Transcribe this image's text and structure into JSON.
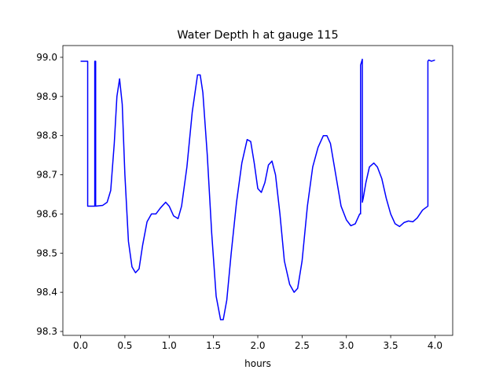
{
  "chart_data": {
    "type": "line",
    "title": "Water Depth h at gauge 115",
    "xlabel": "hours",
    "ylabel": "",
    "xlim": [
      -0.2,
      4.2
    ],
    "ylim": [
      98.29,
      99.03
    ],
    "grid": false,
    "legend": "none",
    "xticks": [
      0.0,
      0.5,
      1.0,
      1.5,
      2.0,
      2.5,
      3.0,
      3.5,
      4.0
    ],
    "xtick_labels": [
      "0.0",
      "0.5",
      "1.0",
      "1.5",
      "2.0",
      "2.5",
      "3.0",
      "3.5",
      "4.0"
    ],
    "yticks": [
      98.3,
      98.4,
      98.5,
      98.6,
      98.7,
      98.8,
      98.9,
      99.0
    ],
    "ytick_labels": [
      "98.3",
      "98.4",
      "98.5",
      "98.6",
      "98.7",
      "98.8",
      "98.9",
      "99.0"
    ],
    "series": [
      {
        "color": "#0000ff",
        "x": [
          0.0,
          0.08,
          0.08,
          0.16,
          0.16,
          0.17,
          0.17,
          0.25,
          0.3,
          0.34,
          0.38,
          0.41,
          0.44,
          0.47,
          0.5,
          0.54,
          0.58,
          0.62,
          0.66,
          0.7,
          0.75,
          0.8,
          0.85,
          0.9,
          0.96,
          1.0,
          1.05,
          1.1,
          1.14,
          1.2,
          1.26,
          1.32,
          1.35,
          1.38,
          1.43,
          1.48,
          1.53,
          1.58,
          1.61,
          1.65,
          1.7,
          1.76,
          1.82,
          1.88,
          1.92,
          1.96,
          2.0,
          2.04,
          2.08,
          2.12,
          2.16,
          2.2,
          2.25,
          2.3,
          2.36,
          2.41,
          2.45,
          2.5,
          2.56,
          2.62,
          2.68,
          2.74,
          2.78,
          2.82,
          2.88,
          2.94,
          3.0,
          3.05,
          3.1,
          3.15,
          3.16,
          3.16,
          3.18,
          3.18,
          3.19,
          3.22,
          3.26,
          3.31,
          3.35,
          3.4,
          3.45,
          3.5,
          3.55,
          3.6,
          3.65,
          3.7,
          3.75,
          3.8,
          3.86,
          3.92,
          3.92,
          3.93,
          3.96,
          4.0
        ],
        "y": [
          98.99,
          98.99,
          98.62,
          98.62,
          98.99,
          98.99,
          98.62,
          98.622,
          98.63,
          98.66,
          98.78,
          98.9,
          98.945,
          98.88,
          98.7,
          98.53,
          98.465,
          98.45,
          98.46,
          98.52,
          98.58,
          98.6,
          98.6,
          98.615,
          98.63,
          98.62,
          98.595,
          98.588,
          98.62,
          98.72,
          98.86,
          98.955,
          98.955,
          98.91,
          98.75,
          98.55,
          98.39,
          98.33,
          98.33,
          98.38,
          98.5,
          98.63,
          98.73,
          98.79,
          98.785,
          98.73,
          98.665,
          98.655,
          98.68,
          98.725,
          98.735,
          98.7,
          98.6,
          98.48,
          98.42,
          98.4,
          98.41,
          98.48,
          98.62,
          98.72,
          98.77,
          98.8,
          98.8,
          98.78,
          98.7,
          98.62,
          98.585,
          98.57,
          98.575,
          98.6,
          98.6,
          98.98,
          98.995,
          98.63,
          98.64,
          98.68,
          98.72,
          98.73,
          98.72,
          98.69,
          98.64,
          98.6,
          98.575,
          98.568,
          98.578,
          98.582,
          98.58,
          98.59,
          98.61,
          98.62,
          98.99,
          98.993,
          98.99,
          98.993
        ]
      }
    ]
  }
}
